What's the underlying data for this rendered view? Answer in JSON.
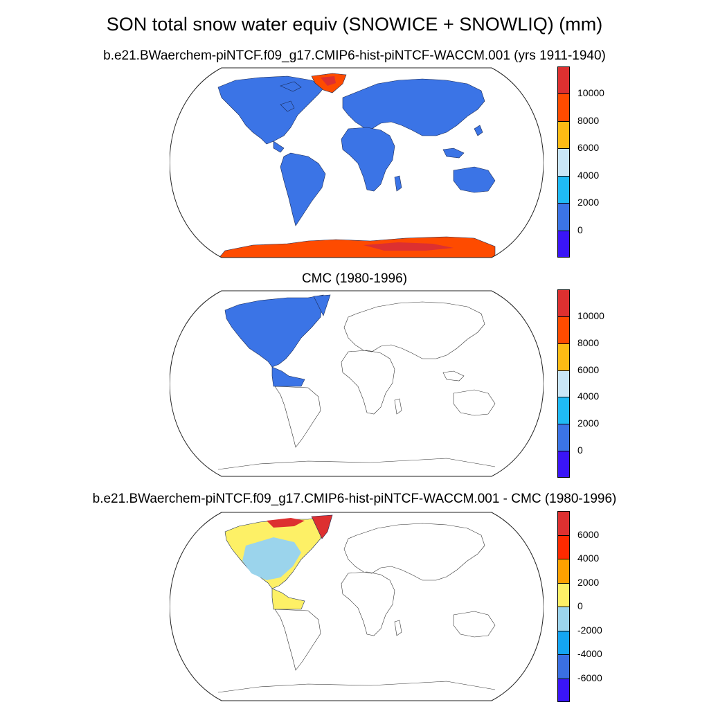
{
  "figure": {
    "title": "SON total snow water equiv (SNOWICE + SNOWLIQ) (mm)"
  },
  "panels": [
    {
      "title": "b.e21.BWaerchem-piNTCF.f09_g17.CMIP6-hist-piNTCF-WACCM.001 (yrs 1911-1940)",
      "colorbar": {
        "colors": [
          "#dd3030",
          "#fe4b00",
          "#fdbb14",
          "#c9e6f6",
          "#1fbaf5",
          "#3b74e6",
          "#3a15f7"
        ],
        "labels": [
          "10000",
          "8000",
          "6000",
          "4000",
          "2000",
          "0"
        ]
      }
    },
    {
      "title": "CMC (1980-1996)",
      "colorbar": {
        "colors": [
          "#dd3030",
          "#fe4b00",
          "#fdbb14",
          "#c9e6f6",
          "#1fbaf5",
          "#3b74e6",
          "#3a15f7"
        ],
        "labels": [
          "10000",
          "8000",
          "6000",
          "4000",
          "2000",
          "0"
        ]
      }
    },
    {
      "title": "b.e21.BWaerchem-piNTCF.f09_g17.CMIP6-hist-piNTCF-WACCM.001 - CMC (1980-1996)",
      "colorbar": {
        "colors": [
          "#dd3030",
          "#fd2a00",
          "#fda000",
          "#fdf066",
          "#9bd4ec",
          "#14a5f2",
          "#3a6fe2",
          "#3a15f7"
        ],
        "labels": [
          "6000",
          "4000",
          "2000",
          "0",
          "-2000",
          "-4000",
          "-6000"
        ]
      }
    }
  ],
  "map_colors": {
    "land_fill": "#3b74e6",
    "ice_high": "#fe4b00",
    "ice_max": "#dd3030",
    "diff_positive": "#fdf066",
    "diff_negative": "#9bd4ec",
    "diff_max": "#dd3030"
  }
}
